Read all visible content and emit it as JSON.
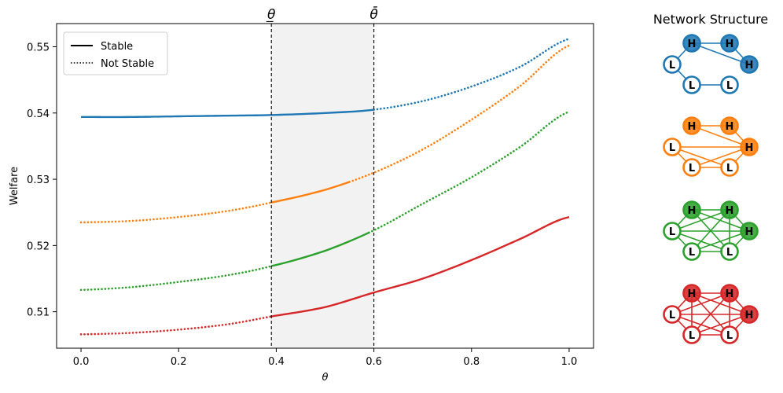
{
  "chart_data": [
    {
      "type": "line",
      "title": "",
      "xlabel": "θ",
      "ylabel": "Welfare",
      "xlim": [
        -0.05,
        1.05
      ],
      "ylim": [
        0.5045,
        0.5535
      ],
      "x_ticks": [
        0.0,
        0.2,
        0.4,
        0.6,
        0.8,
        1.0
      ],
      "x_tick_labels": [
        "0.0",
        "0.2",
        "0.4",
        "0.6",
        "0.8",
        "1.0"
      ],
      "y_ticks": [
        0.51,
        0.52,
        0.53,
        0.54,
        0.55
      ],
      "y_tick_labels": [
        "0.51",
        "0.52",
        "0.53",
        "0.54",
        "0.55"
      ],
      "grid": false,
      "legend_position": "top-left",
      "legend": [
        {
          "label": "Stable",
          "style": "solid"
        },
        {
          "label": "Not Stable",
          "style": "dotted"
        }
      ],
      "thresholds": [
        {
          "label": "θ̲",
          "x": 0.39
        },
        {
          "label": "θ̄",
          "x": 0.6
        }
      ],
      "shaded_region": {
        "from": 0.39,
        "to": 0.6,
        "color": "#f2f2f2"
      },
      "series": [
        {
          "color": "#1f77b4",
          "stable_range": [
            0.0,
            0.6
          ],
          "x": [
            0.0,
            0.1,
            0.2,
            0.3,
            0.39,
            0.5,
            0.6,
            0.7,
            0.8,
            0.9,
            1.0
          ],
          "values": [
            0.5394,
            0.5394,
            0.5395,
            0.5396,
            0.5397,
            0.54,
            0.5405,
            0.5418,
            0.544,
            0.547,
            0.5512
          ]
        },
        {
          "color": "#ff7f0e",
          "stable_range": [
            0.39,
            0.55
          ],
          "x": [
            0.0,
            0.1,
            0.2,
            0.3,
            0.39,
            0.5,
            0.6,
            0.7,
            0.8,
            0.9,
            1.0
          ],
          "values": [
            0.5235,
            0.5237,
            0.5243,
            0.5252,
            0.5265,
            0.5284,
            0.531,
            0.5345,
            0.539,
            0.5441,
            0.5502
          ]
        },
        {
          "color": "#2ca02c",
          "stable_range": [
            0.39,
            0.59
          ],
          "x": [
            0.0,
            0.1,
            0.2,
            0.3,
            0.39,
            0.5,
            0.6,
            0.7,
            0.8,
            0.9,
            1.0
          ],
          "values": [
            0.5133,
            0.5137,
            0.5145,
            0.5155,
            0.5169,
            0.5192,
            0.5223,
            0.5263,
            0.5303,
            0.5349,
            0.5402
          ]
        },
        {
          "color": "#d62728",
          "stable_range": [
            0.39,
            1.0
          ],
          "x": [
            0.0,
            0.1,
            0.2,
            0.3,
            0.39,
            0.5,
            0.6,
            0.7,
            0.8,
            0.9,
            1.0
          ],
          "values": [
            0.5066,
            0.5068,
            0.5073,
            0.5081,
            0.5093,
            0.5107,
            0.5129,
            0.515,
            0.5178,
            0.521,
            0.5243
          ]
        }
      ]
    },
    {
      "type": "network-diagram",
      "title": "Network Structure",
      "networks": [
        {
          "color": "#1f77b4",
          "nodes": [
            "H",
            "H",
            "H",
            "L",
            "L",
            "L"
          ],
          "edges": [
            [
              0,
              1
            ],
            [
              0,
              2
            ],
            [
              1,
              2
            ],
            [
              3,
              4
            ],
            [
              4,
              5
            ],
            [
              3,
              0
            ]
          ]
        },
        {
          "color": "#ff7f0e",
          "nodes": [
            "H",
            "H",
            "H",
            "L",
            "L",
            "L"
          ],
          "edges": [
            [
              0,
              1
            ],
            [
              0,
              2
            ],
            [
              1,
              2
            ],
            [
              3,
              2
            ],
            [
              3,
              4
            ],
            [
              4,
              5
            ],
            [
              5,
              2
            ],
            [
              3,
              5
            ],
            [
              4,
              2
            ]
          ]
        },
        {
          "color": "#2ca02c",
          "nodes": [
            "H",
            "H",
            "H",
            "L",
            "L",
            "L"
          ],
          "edges": [
            [
              0,
              1
            ],
            [
              0,
              2
            ],
            [
              1,
              2
            ],
            [
              3,
              0
            ],
            [
              3,
              2
            ],
            [
              3,
              4
            ],
            [
              3,
              5
            ],
            [
              4,
              5
            ],
            [
              4,
              1
            ],
            [
              4,
              2
            ],
            [
              5,
              0
            ],
            [
              5,
              1
            ],
            [
              5,
              2
            ],
            [
              3,
              1
            ]
          ]
        },
        {
          "color": "#d62728",
          "nodes": [
            "H",
            "H",
            "H",
            "L",
            "L",
            "L"
          ],
          "edges": [
            [
              0,
              1
            ],
            [
              0,
              2
            ],
            [
              0,
              3
            ],
            [
              0,
              4
            ],
            [
              0,
              5
            ],
            [
              1,
              2
            ],
            [
              1,
              3
            ],
            [
              1,
              4
            ],
            [
              1,
              5
            ],
            [
              2,
              3
            ],
            [
              2,
              4
            ],
            [
              2,
              5
            ],
            [
              3,
              4
            ],
            [
              3,
              5
            ],
            [
              4,
              5
            ]
          ]
        }
      ]
    }
  ]
}
